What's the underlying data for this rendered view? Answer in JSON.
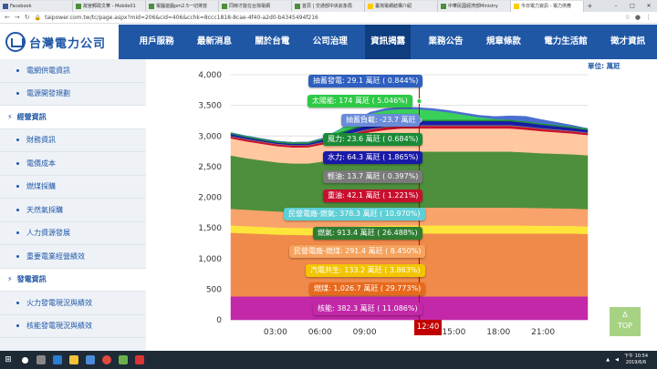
{
  "browser": {
    "tabs": [
      {
        "label": "Facebook",
        "active": false
      },
      {
        "label": "故宮郵政文華 - Mobile01",
        "active": false
      },
      {
        "label": "電腦遊戲pm2.5一切排放",
        "active": false
      },
      {
        "label": "同時才能在台灣電網",
        "active": false
      },
      {
        "label": "首頁 | 交通部中央氣象局",
        "active": false
      },
      {
        "label": "臺灣電網結構介紹",
        "active": false
      },
      {
        "label": "中華民國經濟部Ministry",
        "active": false
      },
      {
        "label": "今日電力資訊 - 電力供應",
        "active": true
      }
    ],
    "url": "taipower.com.tw/tc/page.aspx?mid=206&cid=406&cchk=8ccc1818-8cae-4f40-a2d0-b4345494f216"
  },
  "site": {
    "logo_text": "台灣電力公司",
    "menu": [
      "用戶服務",
      "最新消息",
      "關於台電",
      "公司治理",
      "資訊揭露",
      "業務公告",
      "規章條款",
      "電力生活館",
      "徵才資訊"
    ],
    "active_menu": "資訊揭露"
  },
  "sidebar": {
    "items": [
      {
        "label": "電網供電資訊",
        "type": "sub"
      },
      {
        "label": "電源開發規劃",
        "type": "sub"
      },
      {
        "label": "經營資訊",
        "type": "head"
      },
      {
        "label": "財務資訊",
        "type": "sub"
      },
      {
        "label": "電價成本",
        "type": "sub"
      },
      {
        "label": "燃煤採購",
        "type": "sub"
      },
      {
        "label": "天然氣採購",
        "type": "sub"
      },
      {
        "label": "人力資源發展",
        "type": "sub"
      },
      {
        "label": "重要電業經營績效",
        "type": "sub"
      },
      {
        "label": "發電資訊",
        "type": "head"
      },
      {
        "label": "火力發電現況與績效",
        "type": "sub"
      },
      {
        "label": "核能發電現況與績效",
        "type": "sub"
      }
    ]
  },
  "chart_data": {
    "type": "area",
    "unit_label": "單位: 萬瓩",
    "ylim": [
      0,
      4000
    ],
    "yticks": [
      "0",
      "500",
      "1,000",
      "1,500",
      "2,000",
      "2,500",
      "3,000",
      "3,500",
      "4,000"
    ],
    "xticks": [
      "03:00",
      "06:00",
      "09:00",
      "15:00",
      "18:00",
      "21:00"
    ],
    "cursor_time": "12:40",
    "x": [
      0,
      1,
      2,
      3,
      4,
      5,
      6,
      7,
      8,
      9,
      10,
      11,
      12,
      13,
      14,
      15,
      16,
      17,
      18,
      19,
      20,
      21,
      22,
      23
    ],
    "series": [
      {
        "name": "核能",
        "color": "#c228a8",
        "values": [
          382,
          382,
          382,
          382,
          382,
          382,
          382,
          382,
          382,
          382,
          382,
          382,
          382,
          382,
          382,
          382,
          382,
          382,
          382,
          382,
          382,
          382,
          382,
          382
        ]
      },
      {
        "name": "燃煤",
        "color": "#f08a4b",
        "values": [
          1040,
          1030,
          1020,
          1010,
          1005,
          1000,
          1000,
          1005,
          1010,
          1020,
          1025,
          1027,
          1027,
          1027,
          1027,
          1027,
          1027,
          1027,
          1027,
          1027,
          1027,
          1027,
          1027,
          1020
        ]
      },
      {
        "name": "汽電共生",
        "color": "#ffe53b",
        "values": [
          120,
          118,
          116,
          115,
          115,
          118,
          125,
          130,
          132,
          133,
          133,
          133,
          133,
          133,
          133,
          133,
          133,
          133,
          133,
          130,
          128,
          126,
          124,
          122
        ]
      },
      {
        "name": "民營電廠-燃煤",
        "color": "#f8a36b",
        "values": [
          270,
          268,
          265,
          262,
          260,
          262,
          270,
          280,
          288,
          290,
          291,
          291,
          291,
          291,
          291,
          291,
          291,
          291,
          291,
          290,
          288,
          286,
          284,
          282
        ]
      },
      {
        "name": "燃氣",
        "color": "#4d8f3c",
        "values": [
          870,
          840,
          820,
          800,
          790,
          790,
          810,
          840,
          860,
          880,
          900,
          913,
          913,
          913,
          913,
          913,
          913,
          913,
          913,
          905,
          895,
          890,
          885,
          880
        ]
      },
      {
        "name": "民營電廠-燃氣",
        "color": "#ffc8a0",
        "values": [
          280,
          275,
          270,
          265,
          262,
          265,
          280,
          310,
          340,
          360,
          370,
          378,
          378,
          378,
          378,
          378,
          378,
          378,
          378,
          370,
          360,
          350,
          340,
          330
        ]
      },
      {
        "name": "重油",
        "color": "#c8102e",
        "values": [
          30,
          30,
          30,
          30,
          30,
          30,
          32,
          36,
          40,
          42,
          42,
          42,
          42,
          42,
          42,
          42,
          42,
          42,
          42,
          40,
          38,
          36,
          34,
          32
        ]
      },
      {
        "name": "輕油",
        "color": "#808080",
        "values": [
          10,
          10,
          10,
          10,
          10,
          10,
          11,
          12,
          13,
          14,
          14,
          14,
          14,
          14,
          14,
          14,
          14,
          14,
          14,
          13,
          12,
          12,
          11,
          11
        ]
      },
      {
        "name": "水力",
        "color": "#1a1aa8",
        "values": [
          30,
          25,
          20,
          18,
          18,
          20,
          30,
          45,
          55,
          60,
          64,
          64,
          64,
          64,
          64,
          64,
          64,
          64,
          64,
          60,
          55,
          50,
          45,
          40
        ]
      },
      {
        "name": "風力",
        "color": "#1f8f3a",
        "values": [
          22,
          22,
          23,
          23,
          24,
          24,
          24,
          24,
          24,
          24,
          24,
          24,
          24,
          24,
          24,
          24,
          24,
          24,
          24,
          24,
          24,
          24,
          24,
          24
        ]
      },
      {
        "name": "太陽能",
        "color": "#3ad15a",
        "values": [
          0,
          0,
          0,
          0,
          0,
          0,
          5,
          40,
          110,
          160,
          174,
          174,
          170,
          150,
          120,
          80,
          40,
          10,
          0,
          0,
          0,
          0,
          0,
          0
        ]
      },
      {
        "name": "抽蓄發電",
        "color": "#4a6fd0",
        "values": [
          0,
          0,
          0,
          0,
          0,
          0,
          0,
          0,
          10,
          25,
          29,
          29,
          29,
          30,
          30,
          30,
          30,
          40,
          60,
          80,
          60,
          40,
          20,
          0
        ]
      }
    ],
    "tooltips": [
      {
        "text": "抽蓄發電: 29.1 萬瓩 ( 0.844%)",
        "color": "#2f5fbf"
      },
      {
        "text": "太陽能: 174 萬瓩 ( 5.046%)",
        "color": "#2ec946"
      },
      {
        "text": "抽蓄負載: -23.7 萬瓩",
        "color": "#6a8bd8"
      },
      {
        "text": "風力: 23.6 萬瓩 ( 0.684%)",
        "color": "#1b8a36"
      },
      {
        "text": "水力: 64.3 萬瓩 ( 1.865%)",
        "color": "#1a1aa8"
      },
      {
        "text": "輕油: 13.7 萬瓩 ( 0.397%)",
        "color": "#7a7a7a"
      },
      {
        "text": "重油: 42.1 萬瓩 ( 1.221%)",
        "color": "#c8102e"
      },
      {
        "text": "民營電廠-燃氣: 378.3 萬瓩 ( 10.970%)",
        "color": "#5fcfd6"
      },
      {
        "text": "燃氣: 913.4 萬瓩 ( 26.488%)",
        "color": "#2e7d32"
      },
      {
        "text": "民營電廠-燃煤: 291.4 萬瓩 ( 8.450%)",
        "color": "#f5a25d"
      },
      {
        "text": "汽電共生: 133.2 萬瓩 ( 3.863%)",
        "color": "#f2c500"
      },
      {
        "text": "燃煤: 1,026.7 萬瓩 ( 29.773%)",
        "color": "#e86a1c"
      },
      {
        "text": "核能: 382.3 萬瓩 ( 11.086%)",
        "color": "#c228a8"
      }
    ]
  },
  "totop": {
    "arrow": "Δ",
    "label": "TOP"
  },
  "taskbar": {
    "time": "下午 10:54",
    "date": "2019/6/6"
  }
}
